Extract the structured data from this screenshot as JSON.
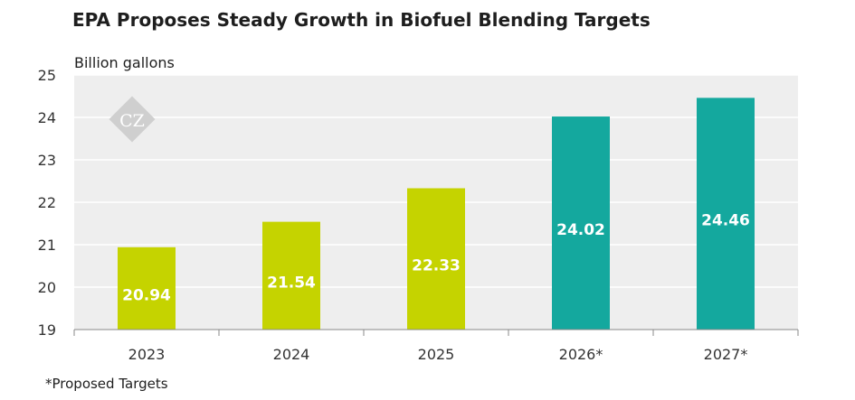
{
  "chart_data": {
    "type": "bar",
    "title": "EPA Proposes Steady Growth in Biofuel Blending Targets",
    "ylabel": "Billion gallons",
    "xlabel": "",
    "categories": [
      "2023",
      "2024",
      "2025",
      "2026*",
      "2027*"
    ],
    "values": [
      20.94,
      21.54,
      22.33,
      24.02,
      24.46
    ],
    "value_labels": [
      "20.94",
      "21.54",
      "22.33",
      "24.02",
      "24.46"
    ],
    "ylim": [
      19,
      25
    ],
    "yticks": [
      19,
      20,
      21,
      22,
      23,
      24,
      25
    ],
    "grid": true,
    "legend": "none",
    "colors": {
      "actual": "#c5d300",
      "proposed": "#14a89e",
      "plot_background": "#eeeeee",
      "gridline": "#ffffff"
    },
    "proposed_flags": [
      false,
      false,
      false,
      true,
      true
    ],
    "footnote": "*Proposed Targets"
  },
  "watermark": {
    "icon": "cz-diamond-logo",
    "text": "CZ"
  }
}
